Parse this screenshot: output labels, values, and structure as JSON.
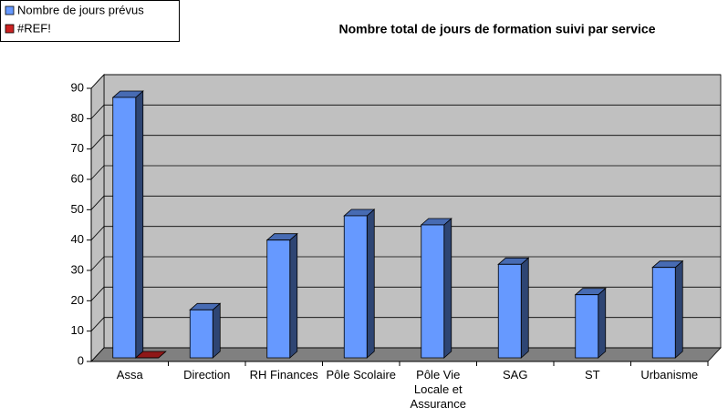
{
  "chart_data": {
    "type": "bar3d",
    "title": "Nombre total de jours de formation suivi par service",
    "categories": [
      "Assa",
      "Direction",
      "RH Finances",
      "Pôle Scolaire",
      "Pôle Vie Locale et Assurance",
      "SAG",
      "ST",
      "Urbanisme"
    ],
    "series": [
      {
        "name": "Nombre de jours prévus",
        "color": "#6699ff",
        "values": [
          87,
          17,
          40,
          48,
          45,
          32,
          22,
          31
        ]
      },
      {
        "name": "#REF!",
        "color": "#cc2222",
        "values": [
          0,
          null,
          null,
          null,
          null,
          null,
          null,
          null
        ]
      }
    ],
    "ylim": [
      0,
      90
    ],
    "yticks": [
      0,
      10,
      20,
      30,
      40,
      50,
      60,
      70,
      80,
      90
    ],
    "grid": true,
    "legend": "top-left"
  }
}
